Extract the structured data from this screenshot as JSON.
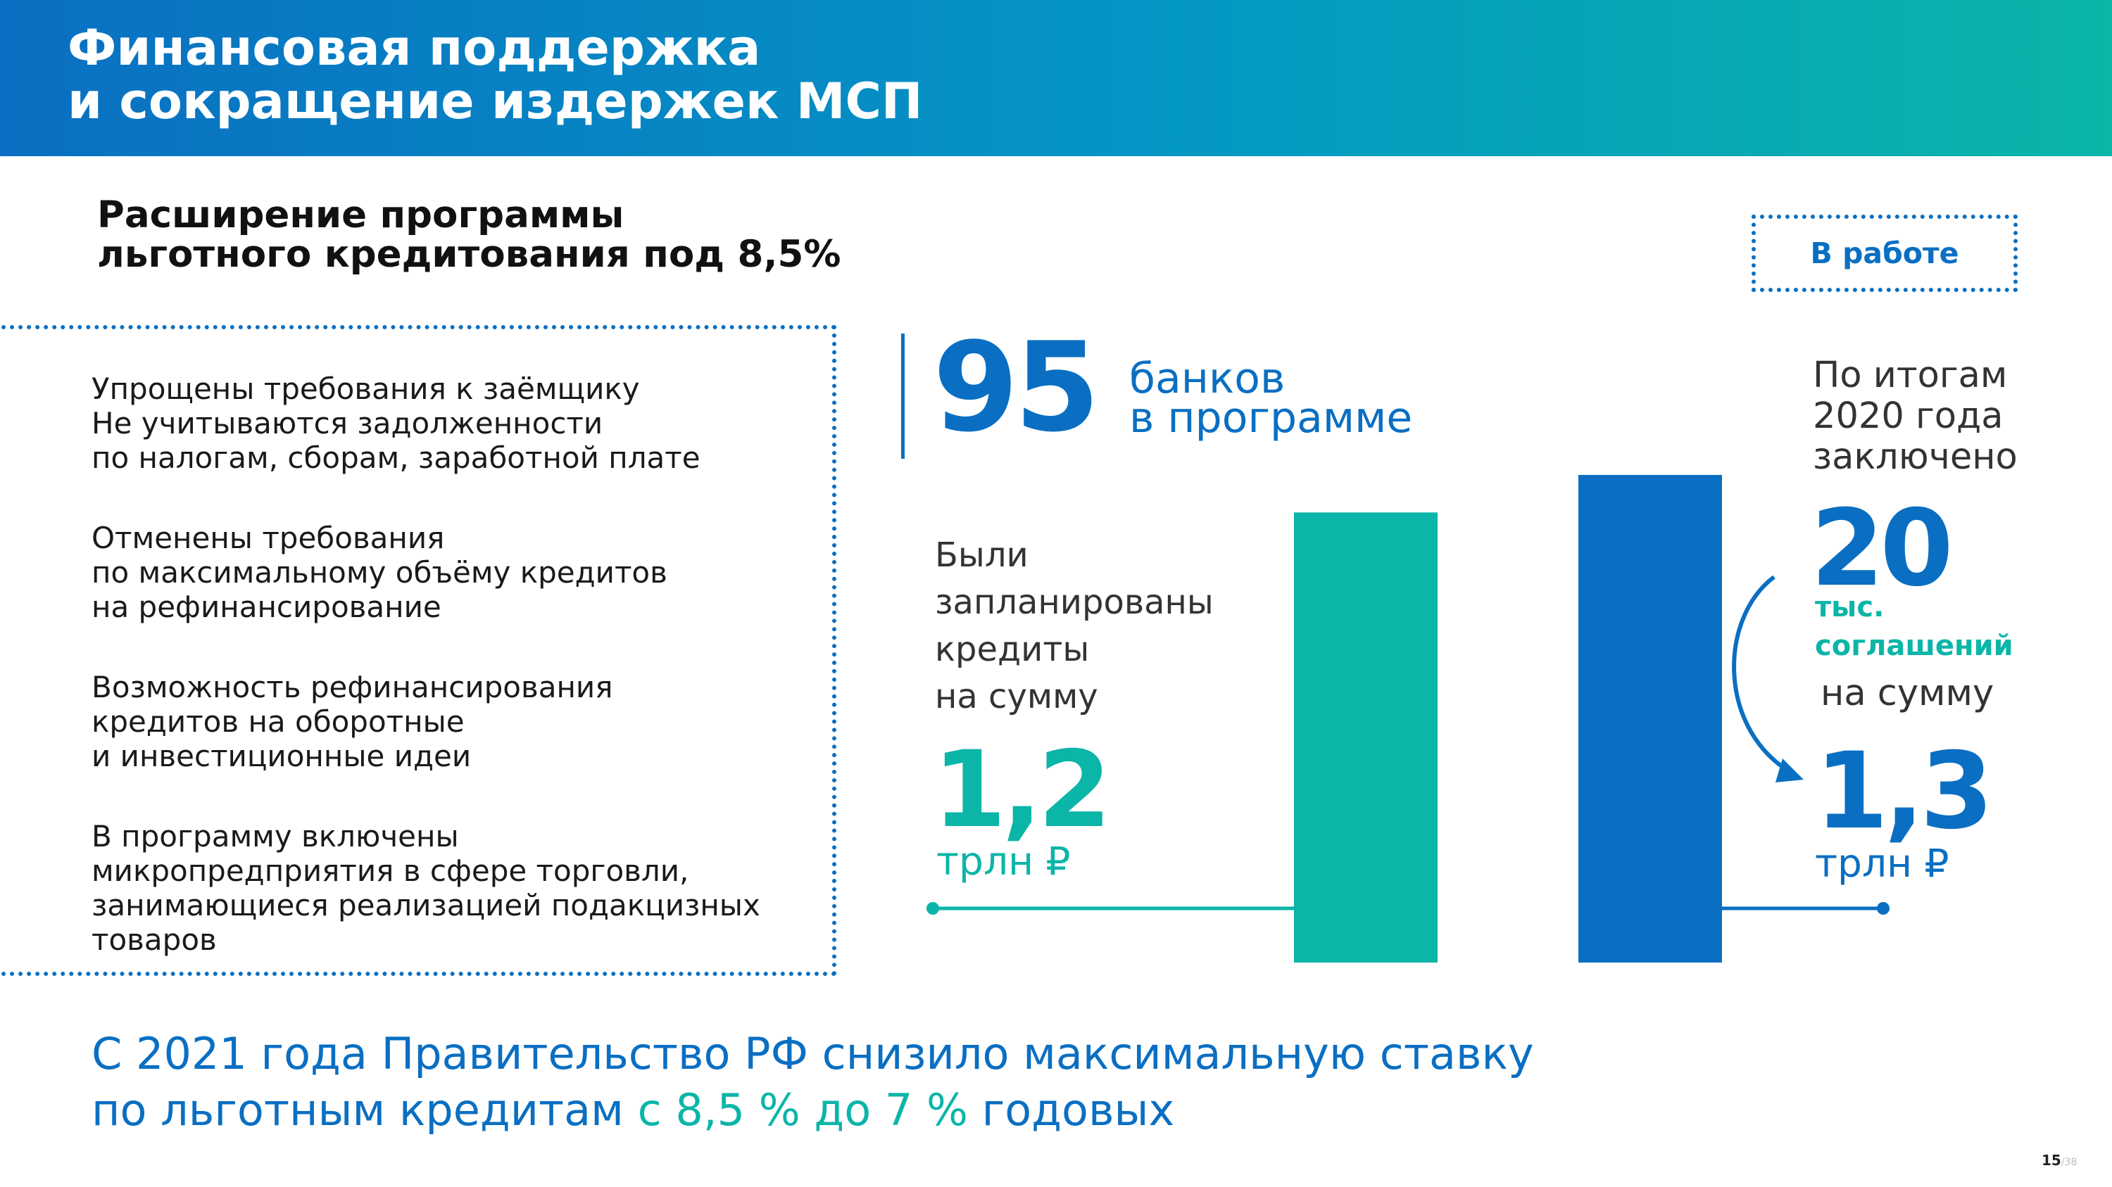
{
  "header": {
    "title": "Финансовая поддержка\nи сокращение издержек МСП"
  },
  "section": {
    "subtitle": "Расширение программы\nльготного кредитования под 8,5%",
    "status": "В работе"
  },
  "features": [
    "Упрощены требования к заёмщику\nНе учитываются задолженности\nпо налогам, сборам, заработной плате",
    "Отменены требования\nпо максимальному объёму кредитов\nна рефинансирование",
    "Возможность рефинансирования\nкредитов на оборотные\nи инвестиционные идеи",
    "В программу включены\nмикропредприятия в сфере торговли,\nзанимающиеся реализацией подакцизных\nтоваров"
  ],
  "banks": {
    "number": "95",
    "label": "банков\nв программе"
  },
  "planned": {
    "caption": "Были\nзапланированы\nкредиты\nна сумму",
    "value": "1,2",
    "unit": "трлн ₽"
  },
  "result": {
    "caption": "По итогам\n2020 года\nзаключено",
    "agreements_value": "20",
    "agreements_unit": "тыс.\nсоглашений",
    "sum_label": "на сумму",
    "value": "1,3",
    "unit": "трлн ₽"
  },
  "colors": {
    "blue": "#0a6fc2",
    "teal": "#0bb5a8"
  },
  "chart_data": {
    "type": "bar",
    "categories": [
      "Были запланированы кредиты на сумму",
      "По итогам 2020 года заключено"
    ],
    "values": [
      1.2,
      1.3
    ],
    "units": "трлн ₽",
    "colors": [
      "#0bb5a8",
      "#0a6fc2"
    ],
    "ylim": [
      0,
      1.3
    ]
  },
  "bottom": {
    "text_part1": "С 2021 года Правительство РФ снизило максимальную ставку",
    "text_part2": "по льготным кредитам ",
    "highlight": "с 8,5 % до 7 %",
    "text_part3": " годовых"
  },
  "footer": {
    "page": "15",
    "total": "/38"
  }
}
